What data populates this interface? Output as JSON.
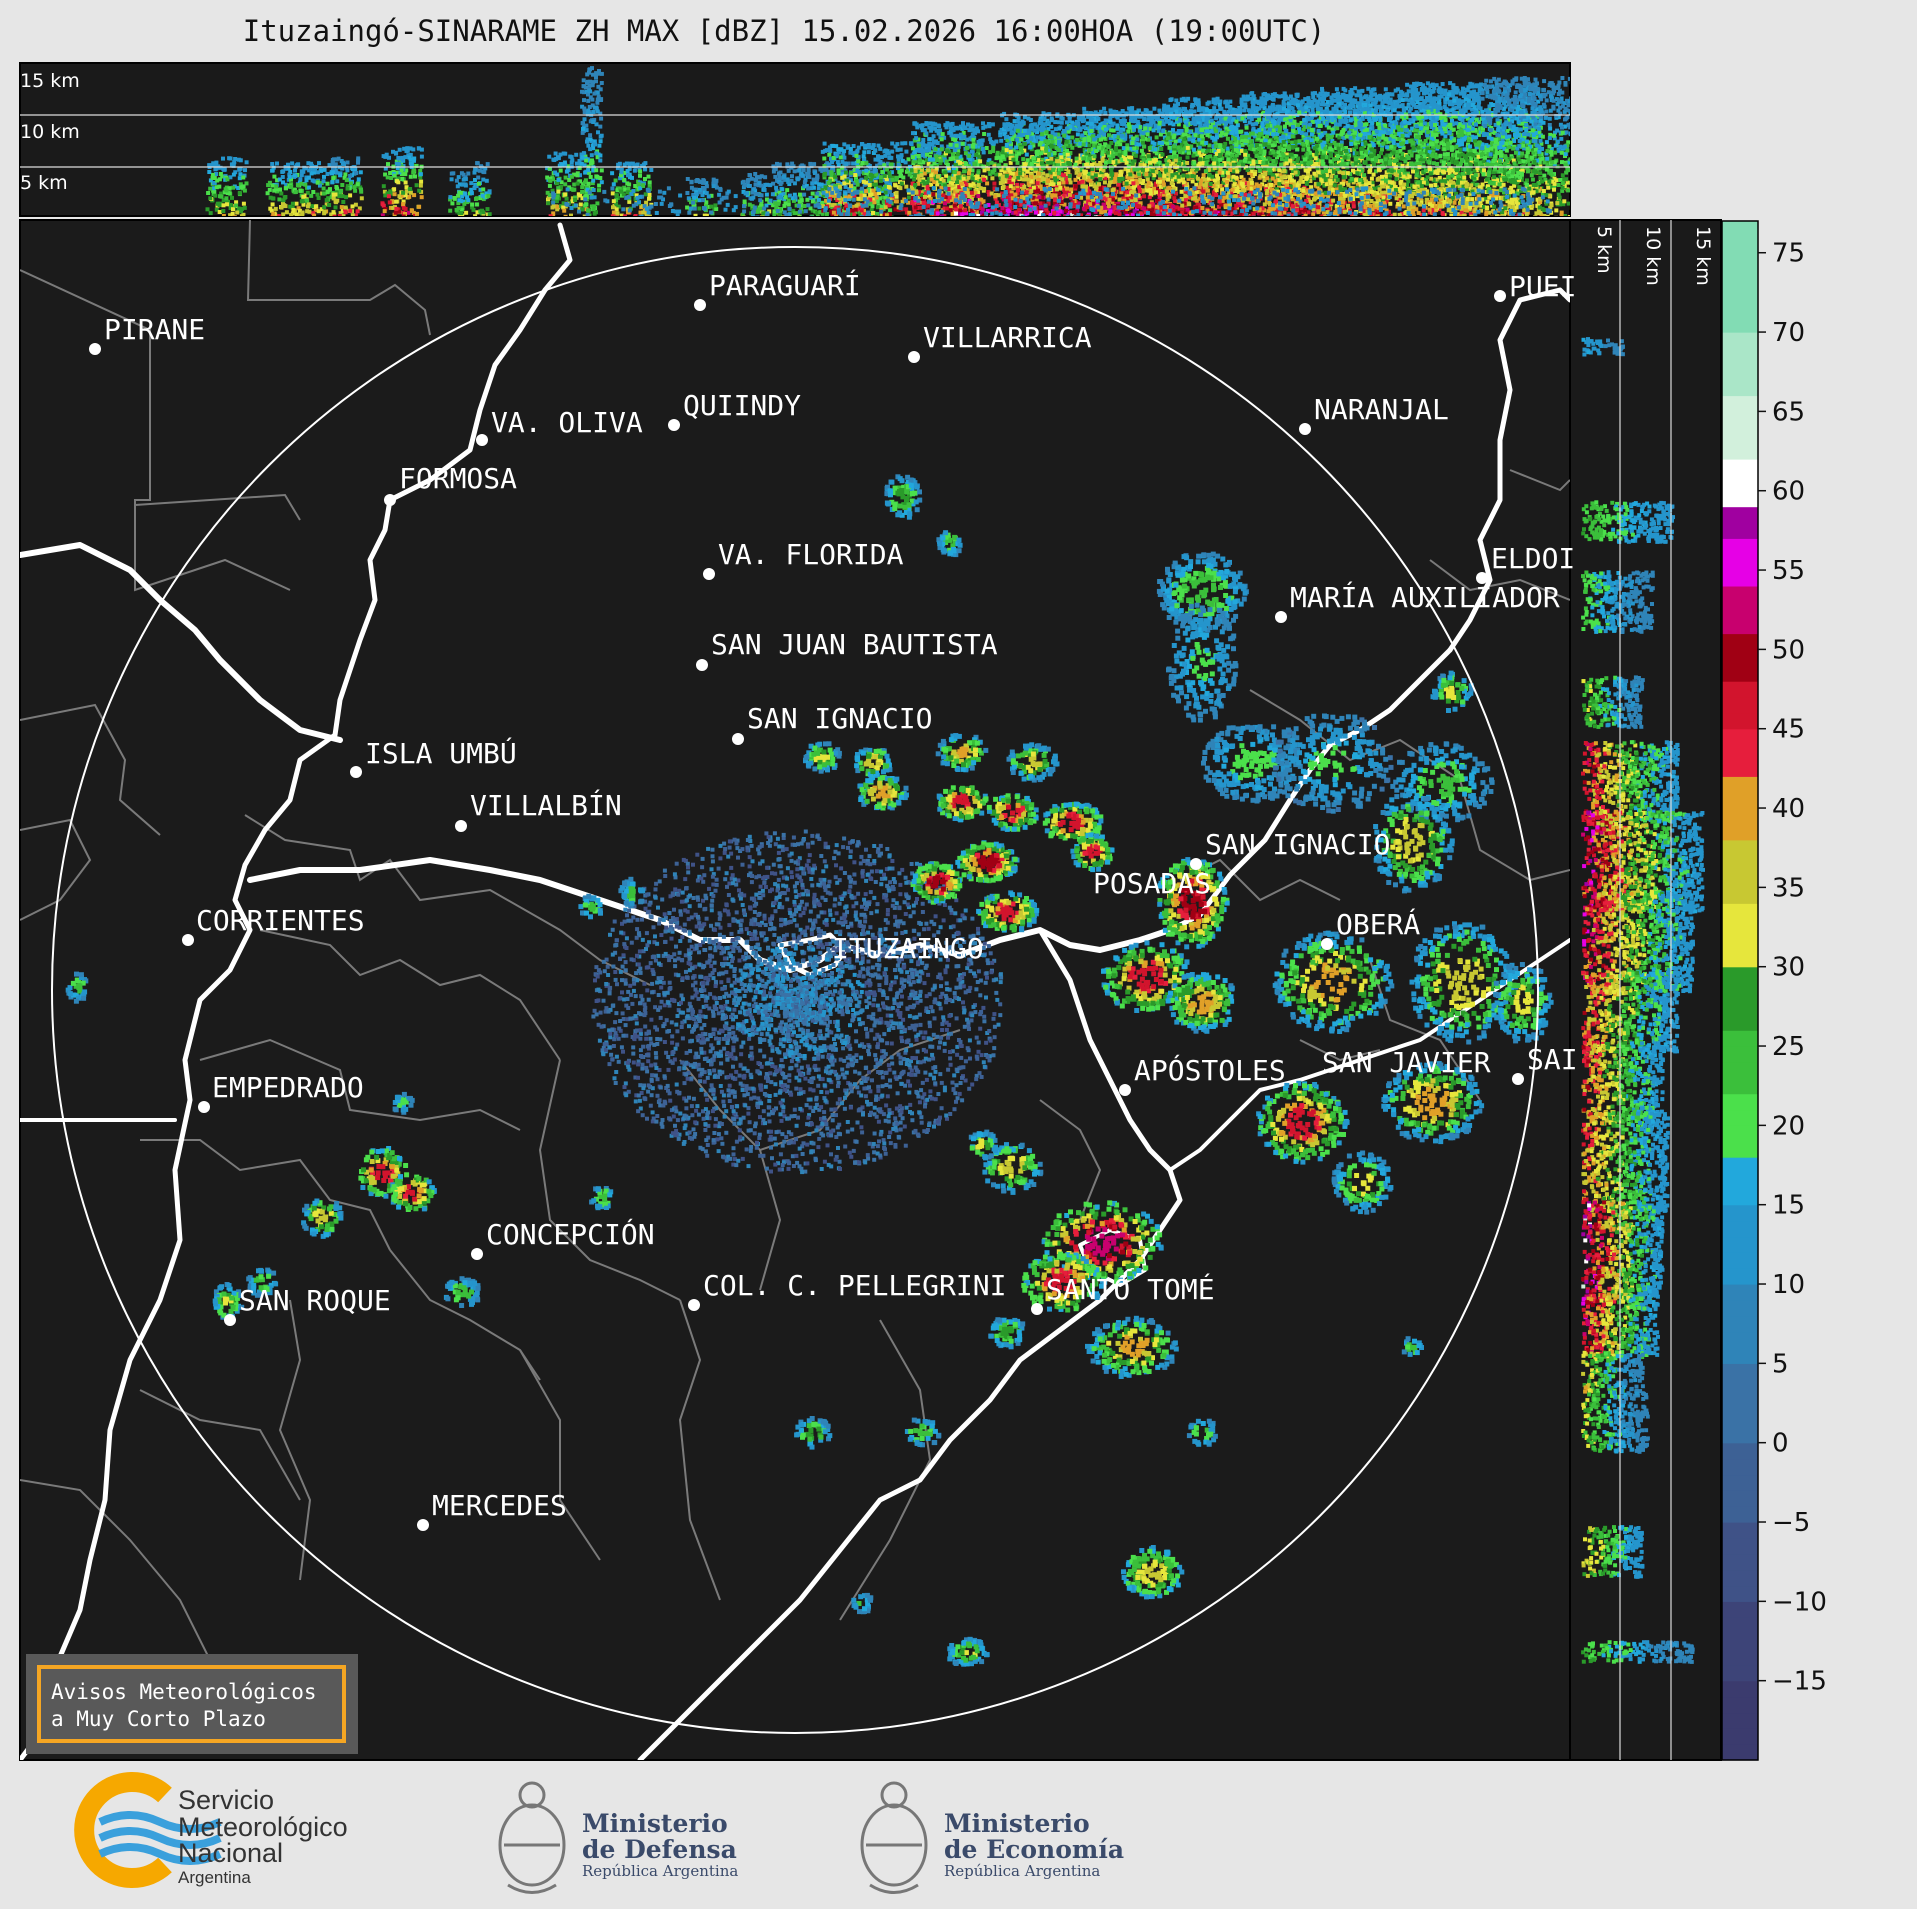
{
  "title": "Ituzaingó-SINARAME ZH MAX [dBZ] 15.02.2026 16:00HOA (19:00UTC)",
  "top_panel": {
    "height_labels": [
      "15 km",
      "10 km",
      "5 km"
    ]
  },
  "side_panel": {
    "height_labels": [
      "5 km",
      "10 km",
      "15 km"
    ]
  },
  "radar_site": "ITUZAINGO",
  "places": [
    {
      "name": "PARAGUARÍ"
    },
    {
      "name": "PIRANE"
    },
    {
      "name": "VILLARRICA"
    },
    {
      "name": "QUIINDY"
    },
    {
      "name": "VA. OLIVA"
    },
    {
      "name": "NARANJAL"
    },
    {
      "name": "FORMOSA"
    },
    {
      "name": "PUEI"
    },
    {
      "name": "VA. FLORIDA"
    },
    {
      "name": "ELDOI"
    },
    {
      "name": "MARÍA AUXILIADOR"
    },
    {
      "name": "SAN JUAN BAUTISTA"
    },
    {
      "name": "SAN IGNACIO"
    },
    {
      "name": "ISLA UMBÚ"
    },
    {
      "name": "VILLALBÍN"
    },
    {
      "name": "SAN IGNACIO"
    },
    {
      "name": "POSADAS"
    },
    {
      "name": "CORRIENTES"
    },
    {
      "name": "ITUZAINGO"
    },
    {
      "name": "OBERÁ"
    },
    {
      "name": "EMPEDRADO"
    },
    {
      "name": "APÓSTOLES"
    },
    {
      "name": "SAN JAVIER"
    },
    {
      "name": "SAI"
    },
    {
      "name": "CONCEPCIÓN"
    },
    {
      "name": "SAN ROQUE"
    },
    {
      "name": "COL. C. PELLEGRINI"
    },
    {
      "name": "SANTO TOMÉ"
    },
    {
      "name": "MERCEDES"
    }
  ],
  "colorbar": {
    "unit": "dBZ",
    "ticks": [
      "75",
      "70",
      "65",
      "60",
      "55",
      "50",
      "45",
      "40",
      "35",
      "30",
      "25",
      "20",
      "15",
      "10",
      "5",
      "0",
      "−5",
      "−10",
      "−15"
    ],
    "range": [
      -20,
      77
    ],
    "stops": [
      {
        "from": -20,
        "color": "#3b3b6e"
      },
      {
        "from": -15,
        "color": "#3d4478"
      },
      {
        "from": -10,
        "color": "#3f5287"
      },
      {
        "from": -5,
        "color": "#3d6195"
      },
      {
        "from": 0,
        "color": "#3a72a6"
      },
      {
        "from": 5,
        "color": "#2f84b8"
      },
      {
        "from": 10,
        "color": "#2595cc"
      },
      {
        "from": 15,
        "color": "#22a8dc"
      },
      {
        "from": 18,
        "color": "#4be04b"
      },
      {
        "from": 22,
        "color": "#3bbf3b"
      },
      {
        "from": 26,
        "color": "#2a9a2a"
      },
      {
        "from": 30,
        "color": "#e6e63c"
      },
      {
        "from": 34,
        "color": "#c8c832"
      },
      {
        "from": 38,
        "color": "#e0a028"
      },
      {
        "from": 42,
        "color": "#e61e3c"
      },
      {
        "from": 45,
        "color": "#d2142d"
      },
      {
        "from": 48,
        "color": "#a00014"
      },
      {
        "from": 51,
        "color": "#c8006e"
      },
      {
        "from": 54,
        "color": "#e600e6"
      },
      {
        "from": 57,
        "color": "#a000a0"
      },
      {
        "from": 59,
        "color": "#ffffff"
      },
      {
        "from": 62,
        "color": "#d2f0dc"
      },
      {
        "from": 66,
        "color": "#aae6c8"
      },
      {
        "from": 70,
        "color": "#82dcb4"
      }
    ]
  },
  "warning_box": {
    "line1": "Avisos Meteorológicos",
    "line2": "a Muy Corto Plazo"
  },
  "footer": {
    "smn": {
      "line1": "Servicio",
      "line2": "Meteorológico",
      "line3": "Nacional",
      "line4": "Argentina"
    },
    "defensa": {
      "line1": "Ministerio",
      "line2": "de Defensa",
      "line3": "República Argentina"
    },
    "economia": {
      "line1": "Ministerio",
      "line2": "de Economía",
      "line3": "República Argentina"
    }
  }
}
